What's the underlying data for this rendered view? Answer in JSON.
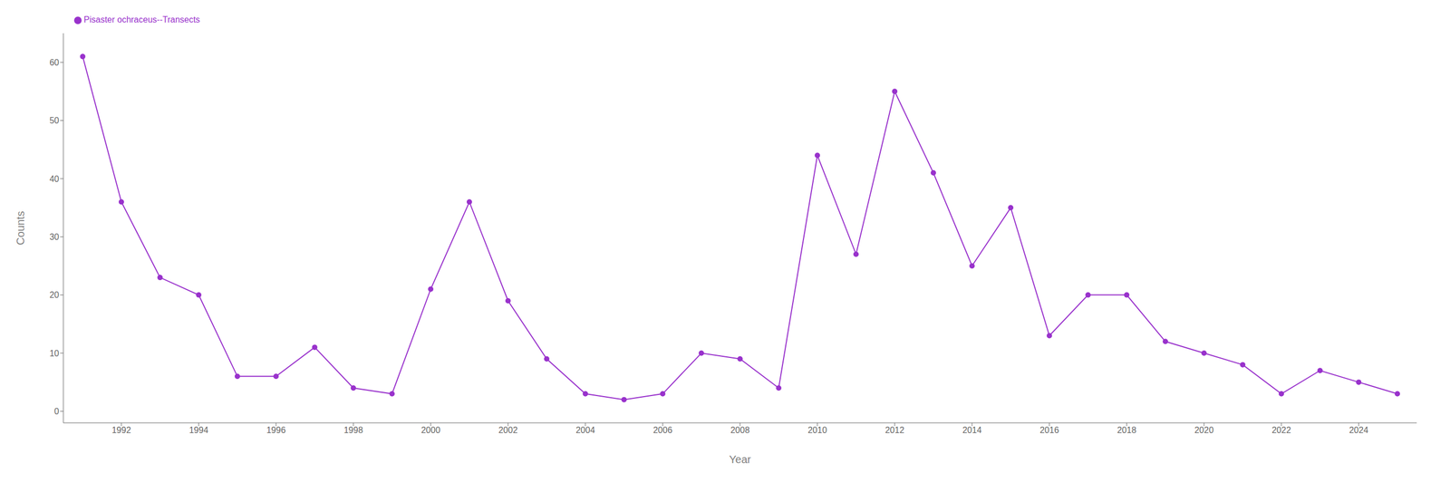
{
  "chart_data": {
    "type": "line",
    "x": [
      1991,
      1992,
      1993,
      1994,
      1995,
      1996,
      1997,
      1998,
      1999,
      2000,
      2001,
      2002,
      2003,
      2004,
      2005,
      2006,
      2007,
      2008,
      2009,
      2010,
      2011,
      2012,
      2013,
      2014,
      2015,
      2016,
      2017,
      2018,
      2019,
      2020,
      2021,
      2022,
      2023,
      2024,
      2025
    ],
    "series": [
      {
        "name": "Pisaster ochraceus--Transects",
        "color": "#9932CC",
        "marker": "circle",
        "values": [
          61,
          36,
          23,
          20,
          6,
          6,
          11,
          4,
          3,
          21,
          36,
          19,
          9,
          3,
          2,
          3,
          10,
          9,
          4,
          44,
          27,
          55,
          41,
          25,
          35,
          13,
          20,
          20,
          12,
          10,
          8,
          3,
          7,
          5,
          3
        ]
      }
    ],
    "xlabel": "Year",
    "ylabel": "Counts",
    "xlim": [
      1990.5,
      2025.5
    ],
    "xticks": [
      1992,
      1994,
      1996,
      1998,
      2000,
      2002,
      2004,
      2006,
      2008,
      2010,
      2012,
      2014,
      2016,
      2018,
      2020,
      2022,
      2024
    ],
    "ylim": [
      -2,
      65
    ],
    "yticks": [
      0,
      10,
      20,
      30,
      40,
      50,
      60
    ],
    "grid": false,
    "legend": "upper left"
  }
}
